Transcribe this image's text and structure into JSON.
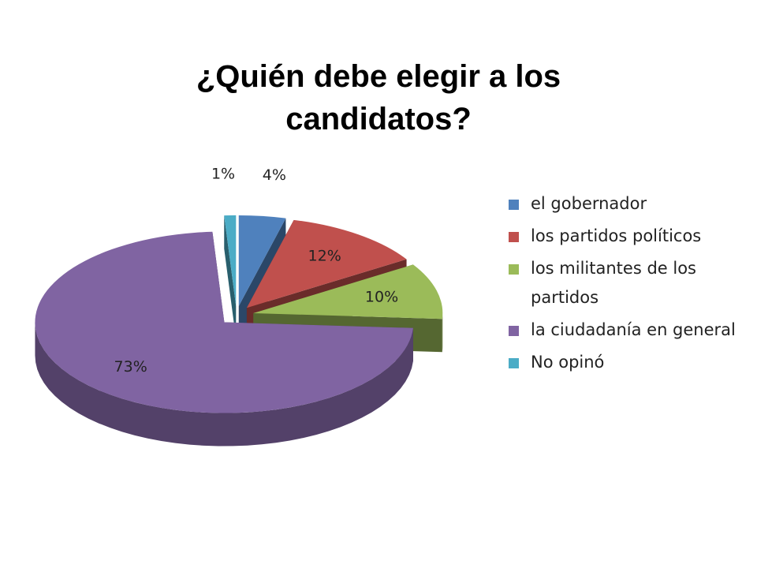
{
  "chart_data": {
    "type": "pie",
    "title": "¿Quién debe elegir a los candidatos?",
    "categories": [
      "el gobernador",
      "los partidos políticos",
      "los militantes de los partidos",
      "la ciudadanía en general",
      "No opinó"
    ],
    "values": [
      4,
      12,
      10,
      73,
      1
    ],
    "value_labels": [
      "4%",
      "12%",
      "10%",
      "73%",
      "1%"
    ],
    "colors": [
      "#4f81bd",
      "#c0504d",
      "#9bbb59",
      "#8064a2",
      "#4bacc6"
    ],
    "legend": "right"
  }
}
